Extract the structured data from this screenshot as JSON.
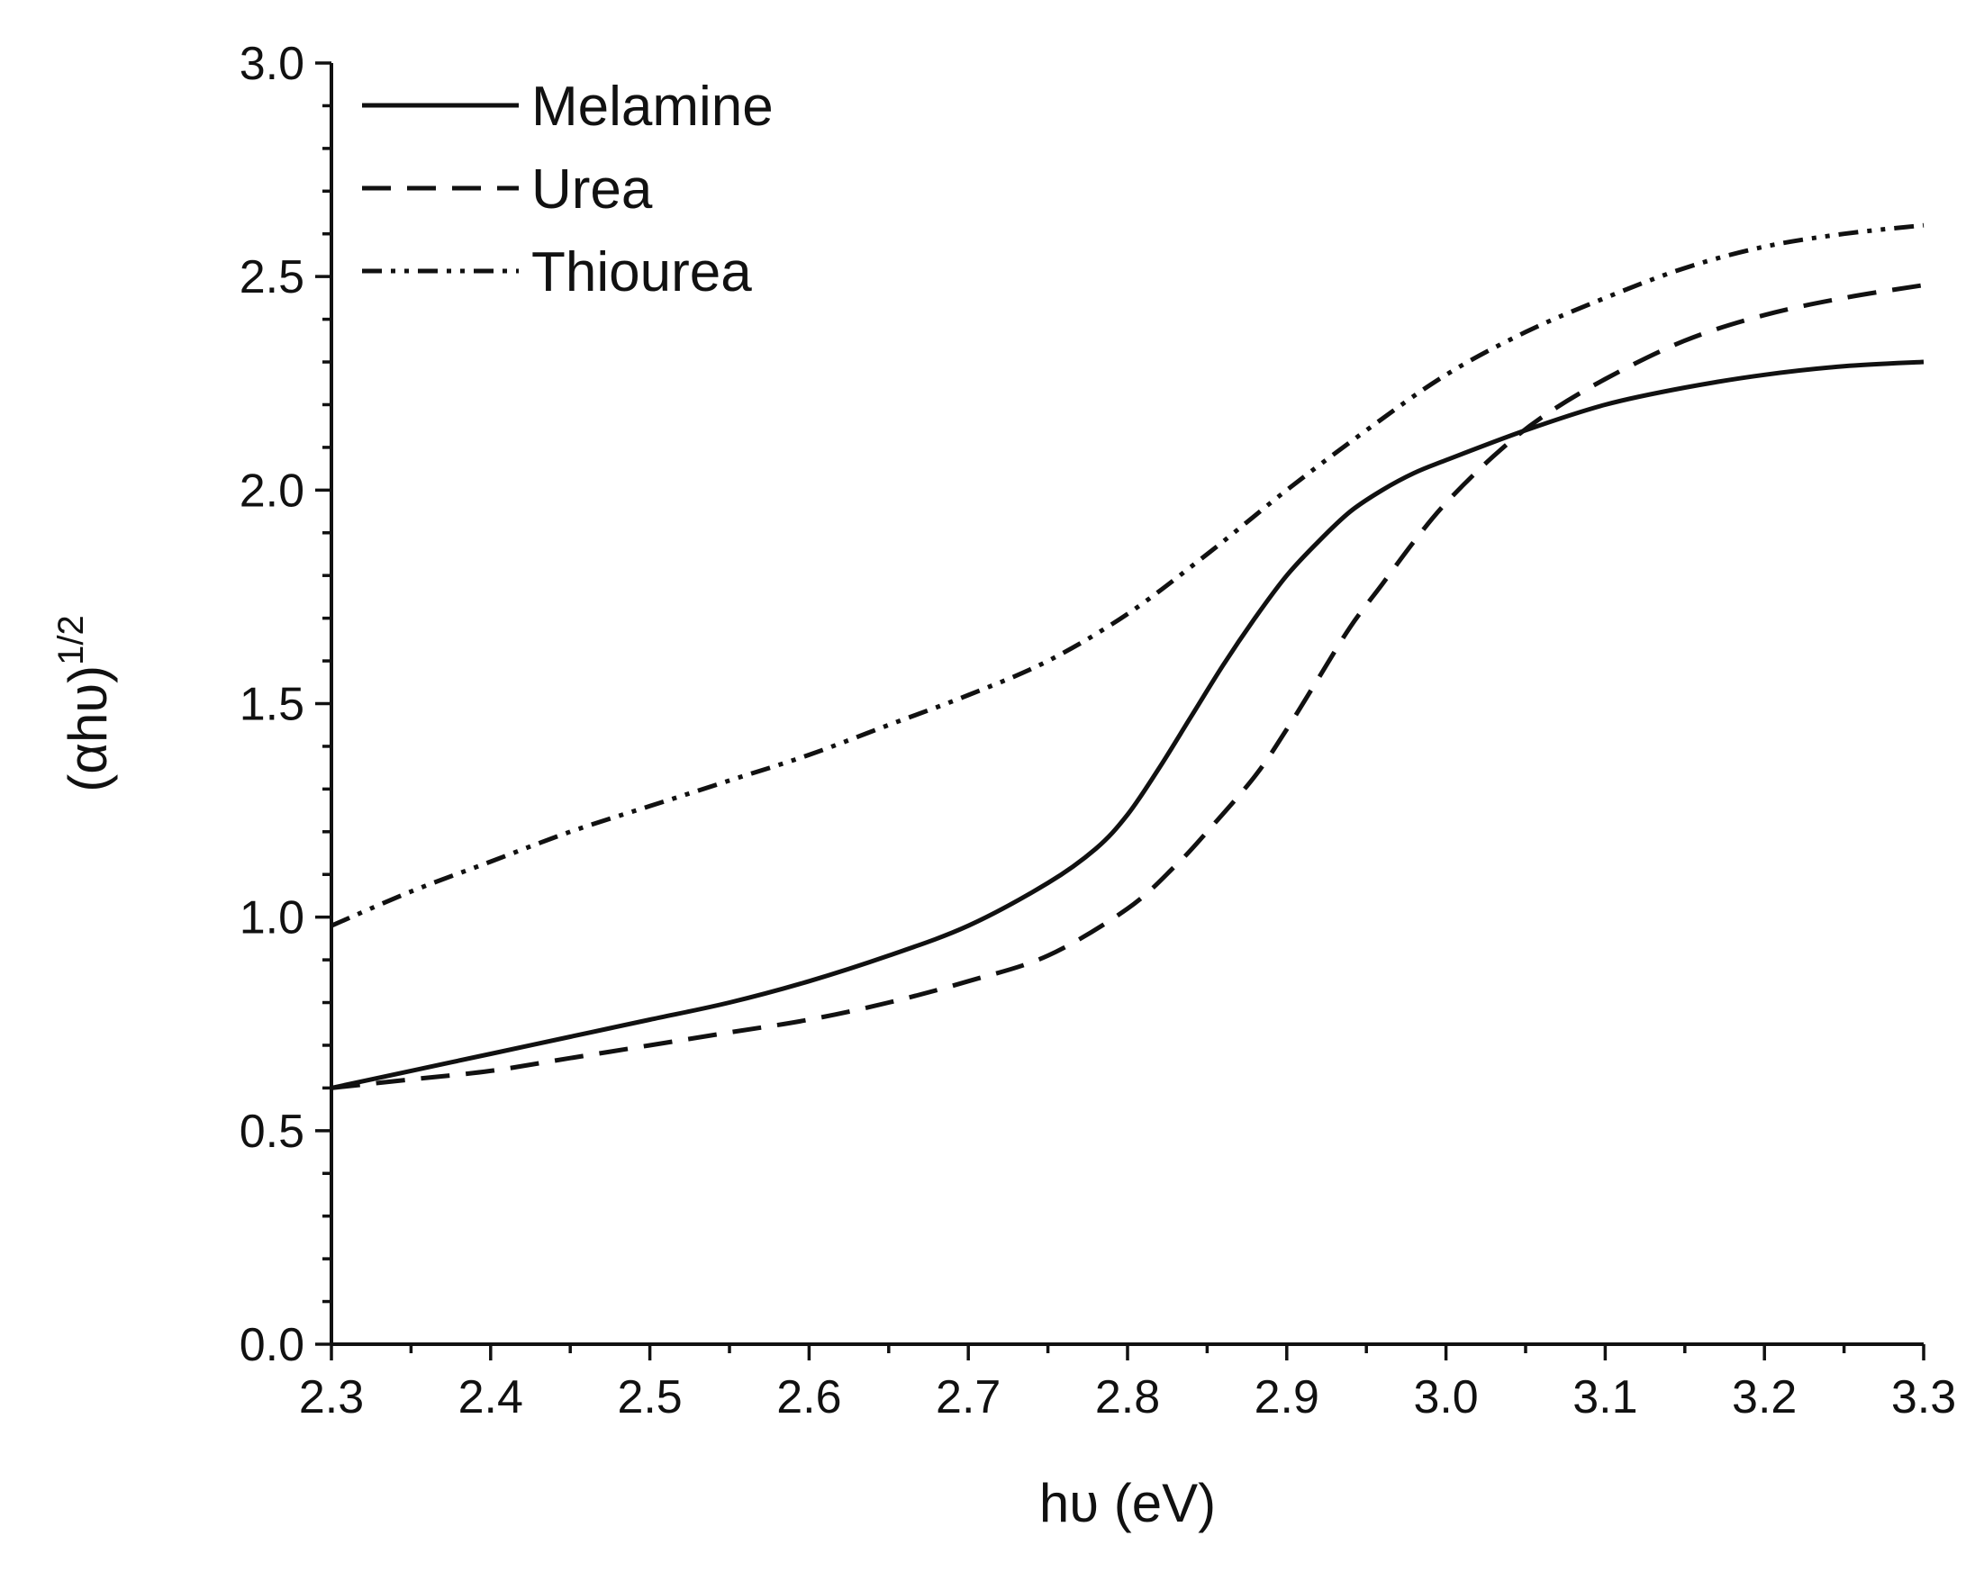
{
  "chart_data": {
    "type": "line",
    "title": "",
    "xlabel": "hυ (eV)",
    "ylabel": "(αhυ)",
    "ylabel_superscript": "1/2",
    "xlim": [
      2.3,
      3.3
    ],
    "ylim": [
      0.0,
      3.0
    ],
    "x_ticks": [
      "2.3",
      "2.4",
      "2.5",
      "2.6",
      "2.7",
      "2.8",
      "2.9",
      "3.0",
      "3.1",
      "3.2",
      "3.3"
    ],
    "y_ticks": [
      "0.0",
      "0.5",
      "1.0",
      "1.5",
      "2.0",
      "2.5",
      "3.0"
    ],
    "grid": false,
    "legend_position": "top-left",
    "series": [
      {
        "name": "Melamine",
        "style": "solid",
        "x": [
          2.3,
          2.35,
          2.4,
          2.45,
          2.5,
          2.55,
          2.6,
          2.65,
          2.7,
          2.75,
          2.78,
          2.8,
          2.82,
          2.84,
          2.86,
          2.88,
          2.9,
          2.92,
          2.94,
          2.96,
          2.98,
          3.0,
          3.05,
          3.1,
          3.15,
          3.2,
          3.25,
          3.3
        ],
        "values": [
          0.6,
          0.64,
          0.68,
          0.72,
          0.76,
          0.8,
          0.85,
          0.91,
          0.98,
          1.08,
          1.16,
          1.24,
          1.35,
          1.47,
          1.59,
          1.7,
          1.8,
          1.88,
          1.95,
          2.0,
          2.04,
          2.07,
          2.14,
          2.2,
          2.24,
          2.27,
          2.29,
          2.3
        ]
      },
      {
        "name": "Urea",
        "style": "dashed",
        "x": [
          2.3,
          2.35,
          2.4,
          2.45,
          2.5,
          2.55,
          2.6,
          2.65,
          2.7,
          2.75,
          2.8,
          2.83,
          2.85,
          2.88,
          2.9,
          2.92,
          2.94,
          2.96,
          2.98,
          3.0,
          3.03,
          3.06,
          3.1,
          3.15,
          3.2,
          3.25,
          3.3
        ],
        "values": [
          0.6,
          0.62,
          0.64,
          0.67,
          0.7,
          0.73,
          0.76,
          0.8,
          0.85,
          0.91,
          1.02,
          1.12,
          1.2,
          1.33,
          1.44,
          1.56,
          1.68,
          1.78,
          1.88,
          1.97,
          2.08,
          2.17,
          2.26,
          2.35,
          2.41,
          2.45,
          2.48
        ]
      },
      {
        "name": "Thiourea",
        "style": "dash-dot-dot",
        "x": [
          2.3,
          2.35,
          2.4,
          2.45,
          2.5,
          2.55,
          2.6,
          2.65,
          2.7,
          2.75,
          2.8,
          2.85,
          2.9,
          2.95,
          3.0,
          3.05,
          3.1,
          3.15,
          3.2,
          3.25,
          3.3
        ],
        "values": [
          0.98,
          1.06,
          1.13,
          1.2,
          1.26,
          1.32,
          1.38,
          1.45,
          1.52,
          1.6,
          1.71,
          1.85,
          2.0,
          2.14,
          2.27,
          2.37,
          2.45,
          2.52,
          2.57,
          2.6,
          2.62
        ]
      }
    ]
  }
}
